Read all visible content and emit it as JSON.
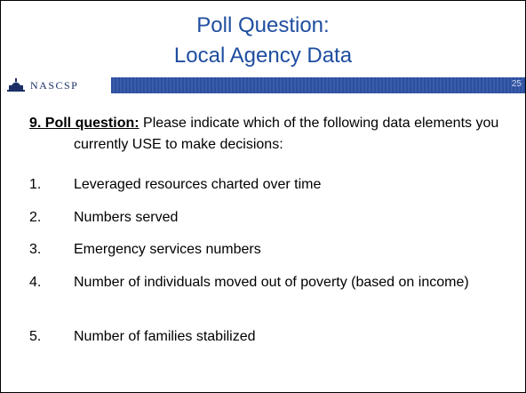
{
  "header": {
    "title_lines": [
      "Poll Question:",
      "Local Agency Data"
    ],
    "logo_text": "NASCSP",
    "slide_number": "25"
  },
  "question": {
    "label": "9. Poll question:",
    "text": "Please indicate which of the following data elements you currently USE to make decisions:"
  },
  "items": [
    {
      "number": "1.",
      "text": "Leveraged resources charted over time"
    },
    {
      "number": "2.",
      "text": "Numbers served"
    },
    {
      "number": "3.",
      "text": "Emergency services numbers"
    },
    {
      "number": "4.",
      "text": "Number of individuals moved out of poverty (based on income)"
    },
    {
      "number": "5.",
      "text": "Number of families stabilized"
    }
  ]
}
